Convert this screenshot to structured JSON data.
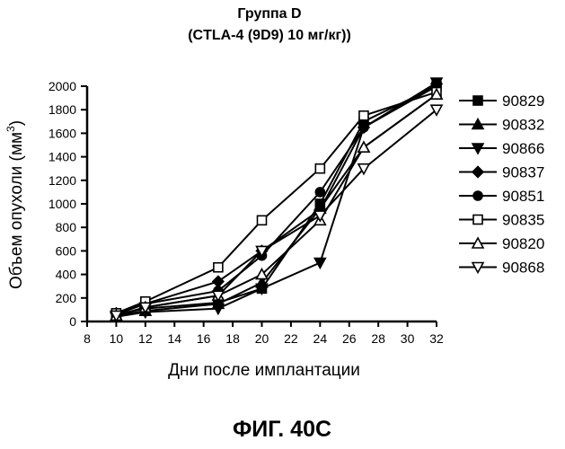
{
  "chart_data": {
    "type": "line",
    "title": "Группа D",
    "subtitle": "(CTLA-4 (9D9) 10 мг/кг))",
    "xlabel": "Дни после имплантации",
    "ylabel": "Объем опухоли (мм",
    "ylabel_sup": "3",
    "ylabel_close": ")",
    "xlim": [
      8,
      32
    ],
    "ylim": [
      0,
      2000
    ],
    "xticks": [
      8,
      10,
      12,
      14,
      16,
      18,
      20,
      22,
      24,
      26,
      28,
      30,
      32
    ],
    "yticks": [
      0,
      200,
      400,
      600,
      800,
      1000,
      1200,
      1400,
      1600,
      1800,
      2000
    ],
    "legend_position": "right",
    "series": [
      {
        "name": "90829",
        "marker": "square-filled",
        "x": [
          10,
          12,
          17,
          20,
          24,
          27,
          32
        ],
        "y": [
          60,
          110,
          160,
          280,
          1000,
          1700,
          2000
        ]
      },
      {
        "name": "90832",
        "marker": "triangle-up-filled",
        "x": [
          10,
          12,
          17,
          20,
          24,
          27,
          32
        ],
        "y": [
          50,
          90,
          150,
          330,
          960,
          1480,
          1930
        ]
      },
      {
        "name": "90866",
        "marker": "triangle-down-filled",
        "x": [
          10,
          12,
          17,
          20,
          24,
          27,
          32
        ],
        "y": [
          40,
          80,
          110,
          280,
          500,
          1650,
          2030
        ]
      },
      {
        "name": "90837",
        "marker": "diamond-filled",
        "x": [
          10,
          12,
          17,
          20,
          24,
          27,
          32
        ],
        "y": [
          70,
          150,
          340,
          600,
          950,
          1650,
          2020
        ]
      },
      {
        "name": "90851",
        "marker": "circle-filled",
        "x": [
          10,
          12,
          17,
          20,
          24,
          27,
          32
        ],
        "y": [
          60,
          150,
          260,
          560,
          1100,
          1650,
          2000
        ]
      },
      {
        "name": "90835",
        "marker": "square-open",
        "x": [
          10,
          12,
          17,
          20,
          24,
          27,
          32
        ],
        "y": [
          70,
          170,
          460,
          860,
          1300,
          1750,
          1950
        ]
      },
      {
        "name": "90820",
        "marker": "triangle-up-open",
        "x": [
          10,
          12,
          17,
          20,
          24,
          27,
          32
        ],
        "y": [
          50,
          120,
          220,
          400,
          860,
          1480,
          1930
        ]
      },
      {
        "name": "90868",
        "marker": "triangle-down-open",
        "x": [
          10,
          12,
          17,
          20,
          24,
          27,
          32
        ],
        "y": [
          50,
          120,
          220,
          600,
          900,
          1300,
          1800
        ]
      }
    ]
  },
  "figure_label": "ФИГ. 40C"
}
